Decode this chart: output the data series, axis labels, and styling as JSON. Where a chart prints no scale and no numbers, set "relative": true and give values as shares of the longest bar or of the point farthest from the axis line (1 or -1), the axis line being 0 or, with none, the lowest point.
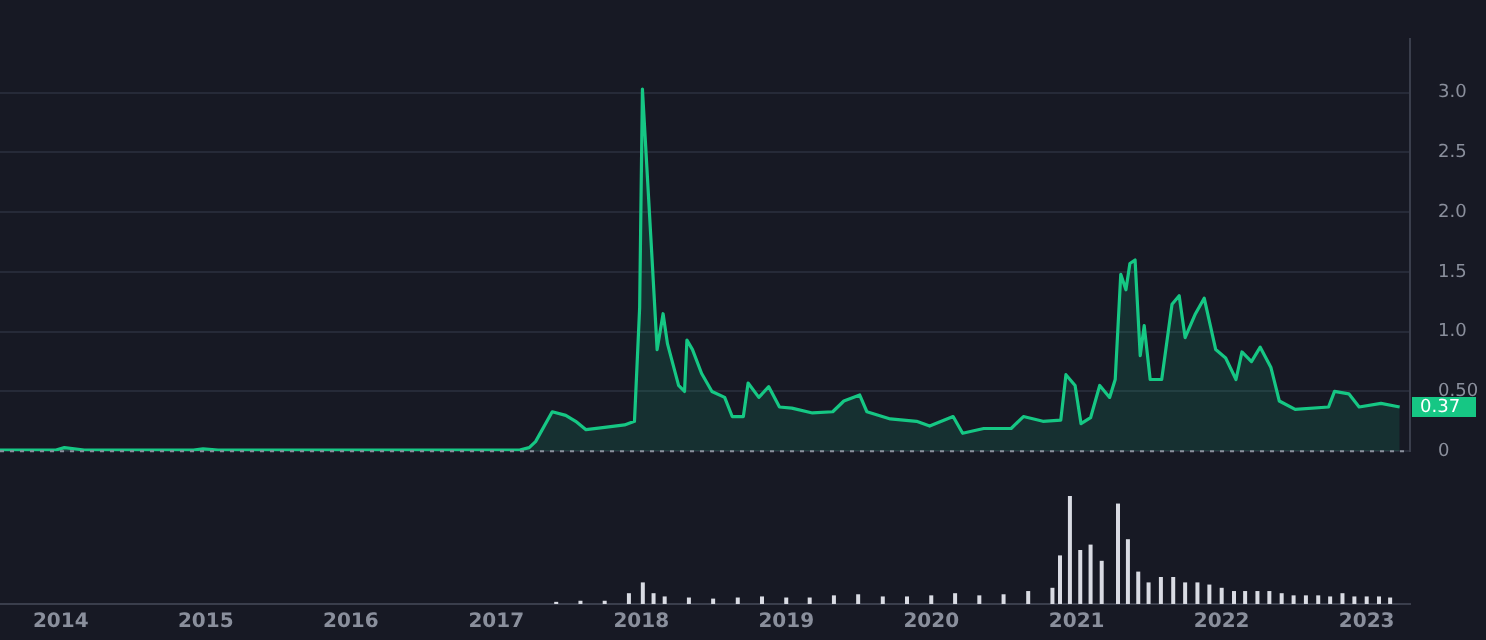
{
  "chart_data": [
    {
      "type": "area",
      "x": [
        "2013-08-01",
        "2013-12-20",
        "2014-01-10",
        "2014-03-01",
        "2014-12-01",
        "2014-12-25",
        "2015-02-01",
        "2016-06-01",
        "2017-03-01",
        "2017-03-25",
        "2017-04-10",
        "2017-05-22",
        "2017-06-25",
        "2017-07-20",
        "2017-08-15",
        "2017-10-01",
        "2017-11-20",
        "2017-12-15",
        "2017-12-28",
        "2018-01-04",
        "2018-01-25",
        "2018-02-10",
        "2018-02-25",
        "2018-03-08",
        "2018-04-05",
        "2018-04-20",
        "2018-04-26",
        "2018-05-10",
        "2018-06-02",
        "2018-06-28",
        "2018-07-30",
        "2018-08-18",
        "2018-09-15",
        "2018-09-27",
        "2018-10-24",
        "2018-11-18",
        "2018-12-15",
        "2019-01-15",
        "2019-03-08",
        "2019-04-28",
        "2019-05-26",
        "2019-07-05",
        "2019-07-23",
        "2019-09-20",
        "2019-11-25",
        "2019-12-28",
        "2020-02-25",
        "2020-03-20",
        "2020-05-12",
        "2020-07-20",
        "2020-08-20",
        "2020-10-08",
        "2020-11-22",
        "2020-12-05",
        "2020-12-28",
        "2021-01-12",
        "2021-02-05",
        "2021-02-28",
        "2021-03-25",
        "2021-04-08",
        "2021-04-22",
        "2021-05-05",
        "2021-05-15",
        "2021-05-28",
        "2021-06-10",
        "2021-06-20",
        "2021-07-05",
        "2021-08-03",
        "2021-08-29",
        "2021-09-16",
        "2021-10-01",
        "2021-10-27",
        "2021-11-18",
        "2021-12-17",
        "2022-01-11",
        "2022-02-06",
        "2022-02-21",
        "2022-03-17",
        "2022-04-08",
        "2022-05-05",
        "2022-05-26",
        "2022-07-05",
        "2022-09-27",
        "2022-10-12",
        "2022-11-17",
        "2022-12-13",
        "2023-02-06",
        "2023-03-25"
      ],
      "values": [
        0.01,
        0.01,
        0.03,
        0.01,
        0.01,
        0.02,
        0.01,
        0.01,
        0.01,
        0.03,
        0.08,
        0.33,
        0.3,
        0.25,
        0.18,
        0.2,
        0.22,
        0.25,
        1.2,
        3.03,
        1.8,
        0.85,
        1.15,
        0.9,
        0.55,
        0.5,
        0.93,
        0.85,
        0.65,
        0.5,
        0.45,
        0.29,
        0.29,
        0.57,
        0.45,
        0.54,
        0.37,
        0.36,
        0.32,
        0.33,
        0.42,
        0.47,
        0.33,
        0.27,
        0.25,
        0.21,
        0.29,
        0.15,
        0.19,
        0.19,
        0.29,
        0.25,
        0.26,
        0.64,
        0.55,
        0.23,
        0.28,
        0.55,
        0.45,
        0.6,
        1.48,
        1.35,
        1.57,
        1.6,
        0.8,
        1.05,
        0.6,
        0.6,
        1.23,
        1.3,
        0.95,
        1.15,
        1.28,
        0.85,
        0.78,
        0.6,
        0.83,
        0.75,
        0.87,
        0.7,
        0.42,
        0.35,
        0.37,
        0.5,
        0.48,
        0.37,
        0.4,
        0.37
      ],
      "color": "#16c784",
      "xlim": [
        "2013-08-01",
        "2023-04-20"
      ],
      "xticks": [
        "2014",
        "2015",
        "2016",
        "2017",
        "2018",
        "2019",
        "2020",
        "2021",
        "2022",
        "2023"
      ],
      "ylim": [
        0,
        3.45
      ],
      "yticks": [
        0,
        {
          "value": 0.5,
          "label": "0.50"
        },
        {
          "value": 1,
          "label": "1.0"
        },
        {
          "value": 1.5,
          "label": "1.5"
        },
        {
          "value": 2,
          "label": "2.0"
        },
        {
          "value": 2.5,
          "label": "2.5"
        },
        {
          "value": 3,
          "label": "3.0"
        }
      ],
      "ref_lines": [
        {
          "axis": "y",
          "value": 0,
          "color": "#8a8f9c",
          "line_style": "dotted"
        }
      ],
      "annotations": [
        {
          "text": "0.37",
          "x": "2023-04-20",
          "y": 0.37
        }
      ],
      "grid": "y",
      "tick_labels": "y"
    },
    {
      "type": "bar",
      "relative": true,
      "x": [
        "2017-06-01",
        "2017-08-01",
        "2017-10-01",
        "2017-12-01",
        "2018-01-05",
        "2018-02-01",
        "2018-03-01",
        "2018-05-01",
        "2018-07-01",
        "2018-09-01",
        "2018-11-01",
        "2019-01-01",
        "2019-03-01",
        "2019-05-01",
        "2019-07-01",
        "2019-09-01",
        "2019-11-01",
        "2020-01-01",
        "2020-03-01",
        "2020-05-01",
        "2020-07-01",
        "2020-09-01",
        "2020-11-01",
        "2020-11-20",
        "2020-12-15",
        "2021-01-10",
        "2021-02-05",
        "2021-03-05",
        "2021-04-15",
        "2021-05-10",
        "2021-06-05",
        "2021-07-01",
        "2021-08-01",
        "2021-09-01",
        "2021-10-01",
        "2021-11-01",
        "2021-12-01",
        "2022-01-01",
        "2022-02-01",
        "2022-03-01",
        "2022-04-01",
        "2022-05-01",
        "2022-06-01",
        "2022-07-01",
        "2022-08-01",
        "2022-09-01",
        "2022-10-01",
        "2022-11-01",
        "2022-12-01",
        "2023-01-01",
        "2023-02-01",
        "2023-03-01"
      ],
      "values": [
        0.02,
        0.03,
        0.03,
        0.1,
        0.2,
        0.1,
        0.07,
        0.06,
        0.05,
        0.06,
        0.07,
        0.06,
        0.06,
        0.08,
        0.09,
        0.07,
        0.07,
        0.08,
        0.1,
        0.08,
        0.09,
        0.12,
        0.15,
        0.45,
        1.0,
        0.5,
        0.55,
        0.4,
        0.93,
        0.6,
        0.3,
        0.2,
        0.25,
        0.25,
        0.2,
        0.2,
        0.18,
        0.15,
        0.12,
        0.12,
        0.12,
        0.12,
        0.1,
        0.08,
        0.08,
        0.08,
        0.07,
        0.1,
        0.07,
        0.07,
        0.07,
        0.06
      ],
      "color": "#d9dbe3",
      "xlim": [
        "2013-08-01",
        "2023-04-20"
      ],
      "xticks": [
        "2014",
        "2015",
        "2016",
        "2017",
        "2018",
        "2019",
        "2020",
        "2021",
        "2022",
        "2023"
      ],
      "tick_labels": "x"
    }
  ]
}
